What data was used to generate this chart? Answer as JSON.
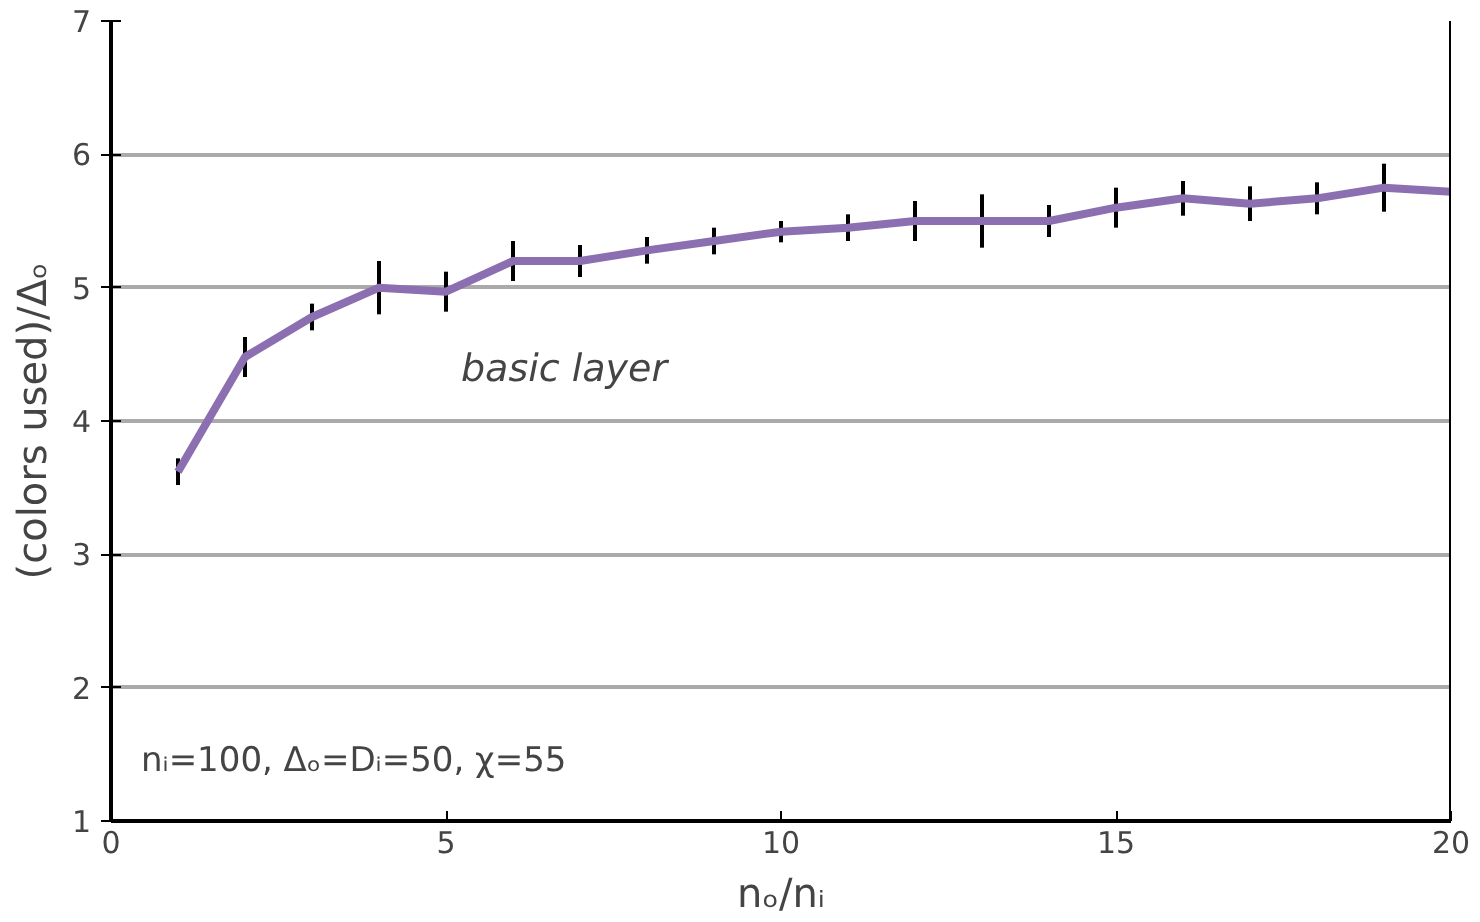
{
  "chart_data": {
    "type": "line",
    "xlabel": "nₒ/nᵢ",
    "ylabel": "(colors used)/Δₒ",
    "x": [
      1,
      2,
      3,
      4,
      5,
      6,
      7,
      8,
      9,
      10,
      11,
      12,
      13,
      14,
      15,
      16,
      17,
      18,
      19,
      20
    ],
    "series": [
      {
        "color": "#8b6fb0",
        "values": [
          3.62,
          4.48,
          4.78,
          5.0,
          4.97,
          5.2,
          5.2,
          5.28,
          5.35,
          5.42,
          5.45,
          5.5,
          5.5,
          5.5,
          5.6,
          5.67,
          5.63,
          5.67,
          5.75,
          5.72
        ],
        "errors": [
          0.1,
          0.15,
          0.1,
          0.2,
          0.15,
          0.15,
          0.12,
          0.1,
          0.1,
          0.08,
          0.1,
          0.15,
          0.2,
          0.12,
          0.15,
          0.13,
          0.13,
          0.12,
          0.18,
          0.2
        ]
      }
    ],
    "xlim": [
      0,
      20
    ],
    "ylim": [
      1,
      7
    ],
    "xticks": [
      0,
      5,
      10,
      15,
      20
    ],
    "yticks": [
      1,
      2,
      3,
      4,
      5,
      6,
      7
    ],
    "grid": "y",
    "marker": "none",
    "line_style": "solid",
    "annotations": [
      "basic layer",
      "nᵢ=100, Δₒ=Dᵢ=50, χ=55"
    ]
  }
}
